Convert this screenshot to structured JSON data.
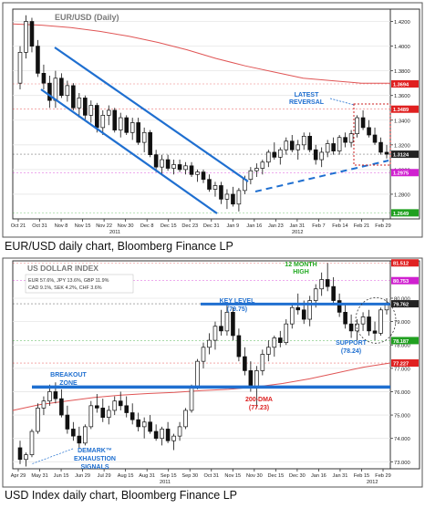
{
  "chart_data": [
    {
      "type": "candlestick",
      "title": "EUR/USD (Daily)",
      "caption": "EUR/USD daily chart, Bloomberg Finance LP",
      "ylim": [
        1.26,
        1.43
      ],
      "yticks": [
        "1.4200",
        "1.4000",
        "1.3800",
        "1.3600",
        "1.3400",
        "1.3200",
        "1.3000",
        "1.2800"
      ],
      "xticks": [
        "Oct 21",
        "Oct 31",
        "Nov 8",
        "Nov 15",
        "Nov 22",
        "Nov 30",
        "Dec 8",
        "Dec 15",
        "Dec 23",
        "Dec 31",
        "Jan 9",
        "Jan 16",
        "Jan 23",
        "Jan 31",
        "Feb 7",
        "Feb 14",
        "Feb 21",
        "Feb 29"
      ],
      "xyears": [
        "2011",
        "2012"
      ],
      "price_labels": [
        {
          "text": "1.3694",
          "value": 1.3694,
          "color": "#e02020"
        },
        {
          "text": "1.3489",
          "value": 1.3489,
          "color": "#e02020"
        },
        {
          "text": "1.3124",
          "value": 1.3124,
          "color": "#222222"
        },
        {
          "text": "1.2975",
          "value": 1.2975,
          "color": "#d020d0"
        },
        {
          "text": "1.2649",
          "value": 1.2649,
          "color": "#20a020"
        }
      ],
      "annotations": {
        "reversal": "LATEST\nREVERSAL"
      },
      "colors": {
        "channel": "#1f6fd0",
        "ma": "#e05555",
        "up": "#ffffff",
        "down": "#111111"
      },
      "candles": [
        [
          1.37,
          1.4,
          1.365,
          1.395
        ],
        [
          1.395,
          1.425,
          1.39,
          1.42
        ],
        [
          1.42,
          1.423,
          1.395,
          1.4
        ],
        [
          1.4,
          1.405,
          1.375,
          1.378
        ],
        [
          1.378,
          1.385,
          1.365,
          1.37
        ],
        [
          1.37,
          1.376,
          1.35,
          1.356
        ],
        [
          1.356,
          1.38,
          1.35,
          1.374
        ],
        [
          1.374,
          1.378,
          1.358,
          1.36
        ],
        [
          1.36,
          1.372,
          1.355,
          1.368
        ],
        [
          1.368,
          1.37,
          1.348,
          1.35
        ],
        [
          1.35,
          1.362,
          1.342,
          1.358
        ],
        [
          1.358,
          1.36,
          1.34,
          1.344
        ],
        [
          1.344,
          1.356,
          1.338,
          1.352
        ],
        [
          1.352,
          1.354,
          1.33,
          1.334
        ],
        [
          1.334,
          1.348,
          1.328,
          1.344
        ],
        [
          1.344,
          1.352,
          1.336,
          1.348
        ],
        [
          1.348,
          1.35,
          1.33,
          1.332
        ],
        [
          1.332,
          1.346,
          1.326,
          1.342
        ],
        [
          1.342,
          1.344,
          1.328,
          1.33
        ],
        [
          1.33,
          1.342,
          1.324,
          1.338
        ],
        [
          1.338,
          1.342,
          1.32,
          1.322
        ],
        [
          1.322,
          1.334,
          1.314,
          1.33
        ],
        [
          1.33,
          1.332,
          1.31,
          1.312
        ],
        [
          1.312,
          1.316,
          1.298,
          1.302
        ],
        [
          1.302,
          1.312,
          1.296,
          1.308
        ],
        [
          1.308,
          1.312,
          1.299,
          1.301
        ],
        [
          1.301,
          1.308,
          1.296,
          1.304
        ],
        [
          1.304,
          1.308,
          1.298,
          1.3
        ],
        [
          1.3,
          1.306,
          1.296,
          1.303
        ],
        [
          1.303,
          1.306,
          1.294,
          1.296
        ],
        [
          1.296,
          1.3,
          1.29,
          1.298
        ],
        [
          1.298,
          1.3,
          1.289,
          1.292
        ],
        [
          1.292,
          1.296,
          1.282,
          1.284
        ],
        [
          1.284,
          1.29,
          1.278,
          1.287
        ],
        [
          1.287,
          1.29,
          1.272,
          1.276
        ],
        [
          1.276,
          1.284,
          1.268,
          1.28
        ],
        [
          1.28,
          1.286,
          1.27,
          1.272
        ],
        [
          1.272,
          1.285,
          1.266,
          1.283
        ],
        [
          1.283,
          1.295,
          1.28,
          1.292
        ],
        [
          1.292,
          1.302,
          1.288,
          1.299
        ],
        [
          1.299,
          1.305,
          1.294,
          1.301
        ],
        [
          1.301,
          1.308,
          1.296,
          1.306
        ],
        [
          1.306,
          1.316,
          1.302,
          1.314
        ],
        [
          1.314,
          1.322,
          1.308,
          1.31
        ],
        [
          1.31,
          1.318,
          1.304,
          1.316
        ],
        [
          1.316,
          1.326,
          1.312,
          1.323
        ],
        [
          1.323,
          1.328,
          1.314,
          1.316
        ],
        [
          1.316,
          1.324,
          1.308,
          1.32
        ],
        [
          1.32,
          1.33,
          1.316,
          1.327
        ],
        [
          1.327,
          1.33,
          1.314,
          1.316
        ],
        [
          1.316,
          1.32,
          1.304,
          1.308
        ],
        [
          1.308,
          1.318,
          1.302,
          1.314
        ],
        [
          1.314,
          1.324,
          1.31,
          1.321
        ],
        [
          1.321,
          1.326,
          1.312,
          1.315
        ],
        [
          1.315,
          1.328,
          1.312,
          1.326
        ],
        [
          1.326,
          1.33,
          1.318,
          1.322
        ],
        [
          1.322,
          1.332,
          1.318,
          1.329
        ],
        [
          1.329,
          1.344,
          1.326,
          1.342
        ],
        [
          1.342,
          1.348,
          1.332,
          1.334
        ],
        [
          1.334,
          1.34,
          1.326,
          1.328
        ],
        [
          1.328,
          1.334,
          1.32,
          1.322
        ],
        [
          1.322,
          1.326,
          1.312,
          1.314
        ],
        [
          1.314,
          1.32,
          1.309,
          1.3124
        ]
      ],
      "ma_200": [
        1.418,
        1.417,
        1.415,
        1.412,
        1.408,
        1.403,
        1.397,
        1.39,
        1.384,
        1.379,
        1.374,
        1.372,
        1.37,
        1.37
      ]
    },
    {
      "type": "candlestick",
      "title": "US DOLLAR INDEX",
      "caption": "USD Index daily chart, Bloomberg Finance LP",
      "legend_lines": [
        "EUR 57.6%, JPY 13.6%, GBP 11.9%",
        "CAD 9.1%, SEK 4.2%, CHF 3.6%"
      ],
      "ylim": [
        72.7,
        81.6
      ],
      "yticks": [
        "80.000",
        "79.000",
        "78.000",
        "77.000",
        "76.000",
        "75.000",
        "74.000",
        "73.000"
      ],
      "xticks": [
        "Apr 29",
        "May 31",
        "Jun 15",
        "Jun 29",
        "Jul 29",
        "Aug 15",
        "Aug 31",
        "Sep 15",
        "Sep 30",
        "Oct 31",
        "Nov 15",
        "Nov 30",
        "Dec 15",
        "Dec 30",
        "Jan 16",
        "Jan 31",
        "Feb 15",
        "Feb 29"
      ],
      "xyears": [
        "2011",
        "2012"
      ],
      "price_labels": [
        {
          "text": "81.512",
          "value": 81.512,
          "color": "#e02020"
        },
        {
          "text": "80.753",
          "value": 80.753,
          "color": "#d020d0"
        },
        {
          "text": "79.762",
          "value": 79.762,
          "color": "#222222"
        },
        {
          "text": "78.187",
          "value": 78.187,
          "color": "#20a020"
        },
        {
          "text": "77.227",
          "value": 77.227,
          "color": "#e02020"
        }
      ],
      "key_level": 79.75,
      "breakout_level": 76.2,
      "annotations": {
        "high": "12 MONTH\nHIGH",
        "key_level": "KEY LEVEL\n(79.75)",
        "breakout": "BREAKOUT\nZONE",
        "support": "SUPPORT\n(78.24)",
        "dma": "200-DMA\n(77.23)",
        "demark": "DEMARK™\nEXHAUSTION\nSIGNALS"
      },
      "colors": {
        "key": "#1f6fd0",
        "ma": "#e05555",
        "up": "#ffffff",
        "down": "#111111"
      },
      "candles": [
        [
          73.6,
          73.9,
          72.9,
          73.1
        ],
        [
          73.1,
          73.4,
          72.8,
          73.3
        ],
        [
          73.3,
          74.4,
          73.2,
          74.3
        ],
        [
          74.3,
          75.5,
          74.2,
          75.3
        ],
        [
          75.3,
          75.8,
          75.0,
          75.6
        ],
        [
          75.6,
          76.3,
          75.4,
          76.0
        ],
        [
          76.0,
          76.4,
          75.5,
          75.7
        ],
        [
          75.7,
          76.1,
          74.9,
          75.0
        ],
        [
          75.0,
          75.4,
          74.2,
          74.4
        ],
        [
          74.4,
          74.7,
          73.9,
          74.1
        ],
        [
          74.1,
          74.5,
          73.6,
          73.8
        ],
        [
          73.8,
          74.6,
          73.7,
          74.5
        ],
        [
          74.5,
          75.6,
          74.4,
          75.4
        ],
        [
          75.4,
          75.9,
          75.1,
          75.3
        ],
        [
          75.3,
          75.7,
          74.7,
          74.9
        ],
        [
          74.9,
          75.4,
          74.6,
          75.2
        ],
        [
          75.2,
          75.8,
          75.0,
          75.6
        ],
        [
          75.6,
          76.0,
          75.2,
          75.4
        ],
        [
          75.4,
          75.8,
          74.9,
          75.1
        ],
        [
          75.1,
          75.5,
          74.6,
          74.8
        ],
        [
          74.8,
          75.1,
          74.3,
          74.5
        ],
        [
          74.5,
          74.9,
          74.0,
          74.7
        ],
        [
          74.7,
          75.0,
          74.2,
          74.3
        ],
        [
          74.3,
          74.6,
          73.9,
          74.0
        ],
        [
          74.0,
          74.5,
          73.7,
          74.4
        ],
        [
          74.4,
          74.7,
          73.8,
          73.9
        ],
        [
          73.9,
          74.2,
          73.5,
          74.1
        ],
        [
          74.1,
          74.7,
          73.9,
          74.5
        ],
        [
          74.5,
          75.3,
          74.4,
          75.2
        ],
        [
          75.2,
          76.3,
          75.1,
          76.2
        ],
        [
          76.2,
          77.4,
          76.1,
          77.3
        ],
        [
          77.3,
          78.1,
          77.0,
          77.9
        ],
        [
          77.9,
          78.5,
          77.6,
          78.2
        ],
        [
          78.2,
          79.0,
          77.8,
          78.8
        ],
        [
          78.8,
          79.5,
          78.4,
          78.6
        ],
        [
          78.6,
          79.7,
          78.4,
          79.4
        ],
        [
          79.4,
          79.6,
          78.2,
          78.4
        ],
        [
          78.4,
          78.7,
          77.3,
          77.5
        ],
        [
          77.5,
          77.9,
          76.7,
          76.9
        ],
        [
          76.9,
          77.3,
          76.0,
          76.2
        ],
        [
          76.2,
          77.1,
          75.3,
          76.9
        ],
        [
          76.9,
          77.8,
          76.7,
          77.6
        ],
        [
          77.6,
          78.2,
          77.3,
          77.9
        ],
        [
          77.9,
          78.4,
          77.5,
          78.3
        ],
        [
          78.3,
          78.6,
          77.9,
          78.1
        ],
        [
          78.1,
          79.1,
          78.0,
          78.9
        ],
        [
          78.9,
          79.8,
          78.7,
          79.6
        ],
        [
          79.6,
          80.2,
          79.3,
          79.5
        ],
        [
          79.5,
          79.9,
          78.9,
          79.1
        ],
        [
          79.1,
          80.1,
          78.8,
          79.9
        ],
        [
          79.9,
          80.6,
          79.6,
          80.4
        ],
        [
          80.4,
          81.1,
          80.1,
          80.8
        ],
        [
          80.8,
          81.5,
          80.3,
          80.5
        ],
        [
          80.5,
          80.9,
          79.7,
          79.9
        ],
        [
          79.9,
          80.2,
          79.2,
          79.4
        ],
        [
          79.4,
          79.8,
          78.7,
          78.9
        ],
        [
          78.9,
          79.3,
          78.3,
          78.6
        ],
        [
          78.6,
          79.1,
          78.2,
          78.9
        ],
        [
          78.9,
          79.4,
          78.6,
          79.2
        ],
        [
          79.2,
          79.5,
          78.4,
          78.6
        ],
        [
          78.6,
          79.0,
          78.2,
          78.5
        ],
        [
          78.5,
          79.6,
          78.4,
          79.5
        ],
        [
          79.5,
          80.0,
          79.3,
          79.76
        ]
      ],
      "ma_200": [
        75.2,
        75.45,
        75.6,
        75.75,
        75.85,
        75.92,
        75.97,
        76.05,
        76.1,
        76.2,
        76.35,
        76.55,
        76.8,
        77.05,
        77.23
      ]
    }
  ]
}
